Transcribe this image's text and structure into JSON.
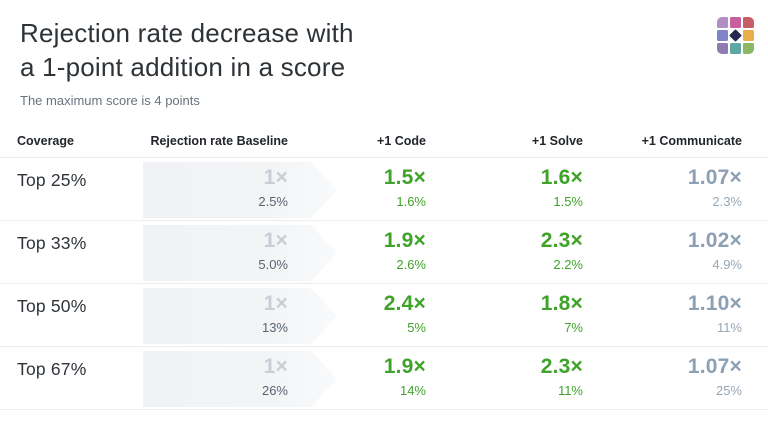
{
  "header": {
    "title_line1": "Rejection rate decrease with",
    "title_line2": "a 1-point addition in a score",
    "subtitle": "The maximum score is 4 points"
  },
  "logo": {
    "name": "nine-tile-grid-logo",
    "tiles": [
      "#B18FC5",
      "#C75F9D",
      "#C55E68",
      "#8083C8",
      "#26264E",
      "#E8B04D",
      "#8F7BB1",
      "#5EA8A3",
      "#8CB763"
    ]
  },
  "colors": {
    "green": "#3FA32A",
    "muted_blue": "#8CA0B4",
    "muted_pct": "#98A6B6",
    "baseline_mult": "#C9CED4",
    "baseline_pct": "#5A6470",
    "border": "#EAECEF",
    "title": "#2E3338",
    "subtitle": "#68727E",
    "header_text": "#22262A",
    "coverage_text": "#2F343A",
    "navy_diamond": "#26264E"
  },
  "table": {
    "columns": [
      "Coverage",
      "Rejection rate Baseline",
      "+1 Code",
      "+1 Solve",
      "+1 Communicate"
    ],
    "rows": [
      {
        "coverage": "Top 25%",
        "baseline": {
          "mult": "1×",
          "pct": "2.5%"
        },
        "code": {
          "mult": "1.5×",
          "pct": "1.6%"
        },
        "solve": {
          "mult": "1.6×",
          "pct": "1.5%"
        },
        "communicate": {
          "mult": "1.07×",
          "pct": "2.3%"
        }
      },
      {
        "coverage": "Top 33%",
        "baseline": {
          "mult": "1×",
          "pct": "5.0%"
        },
        "code": {
          "mult": "1.9×",
          "pct": "2.6%"
        },
        "solve": {
          "mult": "2.3×",
          "pct": "2.2%"
        },
        "communicate": {
          "mult": "1.02×",
          "pct": "4.9%"
        }
      },
      {
        "coverage": "Top 50%",
        "baseline": {
          "mult": "1×",
          "pct": "13%"
        },
        "code": {
          "mult": "2.4×",
          "pct": "5%"
        },
        "solve": {
          "mult": "1.8×",
          "pct": "7%"
        },
        "communicate": {
          "mult": "1.10×",
          "pct": "11%"
        }
      },
      {
        "coverage": "Top 67%",
        "baseline": {
          "mult": "1×",
          "pct": "26%"
        },
        "code": {
          "mult": "1.9×",
          "pct": "14%"
        },
        "solve": {
          "mult": "2.3×",
          "pct": "11%"
        },
        "communicate": {
          "mult": "1.07×",
          "pct": "25%"
        }
      }
    ]
  },
  "chart_data": {
    "type": "table",
    "title": "Rejection rate decrease with a 1-point addition in a score",
    "subtitle": "The maximum score is 4 points",
    "columns": [
      "Coverage",
      "Rejection rate Baseline",
      "+1 Code",
      "+1 Solve",
      "+1 Communicate"
    ],
    "rows": [
      {
        "coverage": "Top 25%",
        "baseline_mult": 1.0,
        "baseline_rate_pct": 2.5,
        "code_mult": 1.5,
        "code_rate_pct": 1.6,
        "solve_mult": 1.6,
        "solve_rate_pct": 1.5,
        "communicate_mult": 1.07,
        "communicate_rate_pct": 2.3
      },
      {
        "coverage": "Top 33%",
        "baseline_mult": 1.0,
        "baseline_rate_pct": 5.0,
        "code_mult": 1.9,
        "code_rate_pct": 2.6,
        "solve_mult": 2.3,
        "solve_rate_pct": 2.2,
        "communicate_mult": 1.02,
        "communicate_rate_pct": 4.9
      },
      {
        "coverage": "Top 50%",
        "baseline_mult": 1.0,
        "baseline_rate_pct": 13,
        "code_mult": 2.4,
        "code_rate_pct": 5,
        "solve_mult": 1.8,
        "solve_rate_pct": 7,
        "communicate_mult": 1.1,
        "communicate_rate_pct": 11
      },
      {
        "coverage": "Top 67%",
        "baseline_mult": 1.0,
        "baseline_rate_pct": 26,
        "code_mult": 1.9,
        "code_rate_pct": 14,
        "solve_mult": 2.3,
        "solve_rate_pct": 11,
        "communicate_mult": 1.07,
        "communicate_rate_pct": 25
      }
    ]
  }
}
